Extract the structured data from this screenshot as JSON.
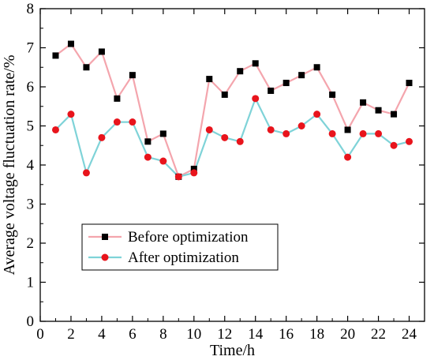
{
  "chart_data": {
    "type": "line",
    "xlabel": "Time/h",
    "ylabel": "Average voltage fluctuation rate/%",
    "xlim": [
      0,
      25
    ],
    "ylim": [
      0,
      8
    ],
    "xticks": [
      0,
      2,
      4,
      6,
      8,
      10,
      12,
      14,
      16,
      18,
      20,
      22,
      24
    ],
    "yticks": [
      0,
      1,
      2,
      3,
      4,
      5,
      6,
      7,
      8
    ],
    "grid": false,
    "legend_position": "lower-left",
    "x": [
      1,
      2,
      3,
      4,
      5,
      6,
      7,
      8,
      9,
      10,
      11,
      12,
      13,
      14,
      15,
      16,
      17,
      18,
      19,
      20,
      21,
      22,
      23,
      24
    ],
    "series": [
      {
        "name": "Before optimization",
        "line_color": "#f4a5ad",
        "marker": "square",
        "marker_color": "#000000",
        "values": [
          6.8,
          7.1,
          6.5,
          6.9,
          5.7,
          6.3,
          4.6,
          4.8,
          3.7,
          3.9,
          6.2,
          5.8,
          6.4,
          6.6,
          5.9,
          6.1,
          6.3,
          6.5,
          5.8,
          4.9,
          5.6,
          5.4,
          5.3,
          6.1
        ]
      },
      {
        "name": "After optimization",
        "line_color": "#7fd3d8",
        "marker": "circle",
        "marker_color": "#e8141c",
        "values": [
          4.9,
          5.3,
          3.8,
          4.7,
          5.1,
          5.1,
          4.2,
          4.1,
          3.7,
          3.8,
          4.9,
          4.7,
          4.6,
          5.7,
          4.9,
          4.8,
          5.0,
          5.3,
          4.8,
          4.2,
          4.8,
          4.8,
          4.5,
          4.6
        ]
      }
    ]
  }
}
